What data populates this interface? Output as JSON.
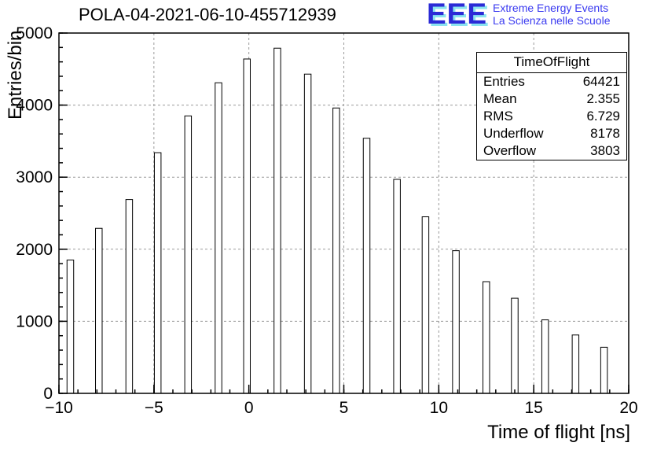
{
  "header": {
    "title": "POLA-04-2021-06-10-455712939",
    "logo": {
      "text": "EEE",
      "line1": "Extreme Energy Events",
      "line2": "La Scienza nelle Scuole",
      "color": "#2b2bd6",
      "shadow_color": "#8ae4ef"
    }
  },
  "stats": {
    "title": "TimeOfFlight",
    "rows": [
      {
        "label": "Entries",
        "value": "64421"
      },
      {
        "label": "Mean",
        "value": "2.355"
      },
      {
        "label": "RMS",
        "value": "6.729"
      },
      {
        "label": "Underflow",
        "value": "8178"
      },
      {
        "label": "Overflow",
        "value": "3803"
      }
    ]
  },
  "chart_data": {
    "type": "bar",
    "title": "POLA-04-2021-06-10-455712939",
    "xlabel": "Time of flight [ns]",
    "ylabel": "Entries/bin",
    "xlim": [
      -10,
      20
    ],
    "ylim": [
      0,
      5000
    ],
    "grid": true,
    "legend": "none",
    "x_major_ticks": [
      -10,
      -5,
      0,
      5,
      10,
      15,
      20
    ],
    "x_tick_labels": [
      "−10",
      "−5",
      "0",
      "5",
      "10",
      "15",
      "20"
    ],
    "y_major_ticks": [
      0,
      1000,
      2000,
      3000,
      4000,
      5000
    ],
    "x_minor_step": 1,
    "y_minor_step": 200,
    "bar_width_ns": 0.35,
    "x": [
      -9.4,
      -7.9,
      -6.3,
      -4.8,
      -3.2,
      -1.6,
      -0.1,
      1.5,
      3.1,
      4.6,
      6.2,
      7.8,
      9.3,
      10.9,
      12.5,
      14.0,
      15.6,
      17.2,
      18.7
    ],
    "values": [
      1850,
      2290,
      2690,
      3340,
      3850,
      4310,
      4640,
      4790,
      4430,
      3960,
      3540,
      2970,
      2450,
      1980,
      1550,
      1320,
      1020,
      810,
      640
    ]
  }
}
